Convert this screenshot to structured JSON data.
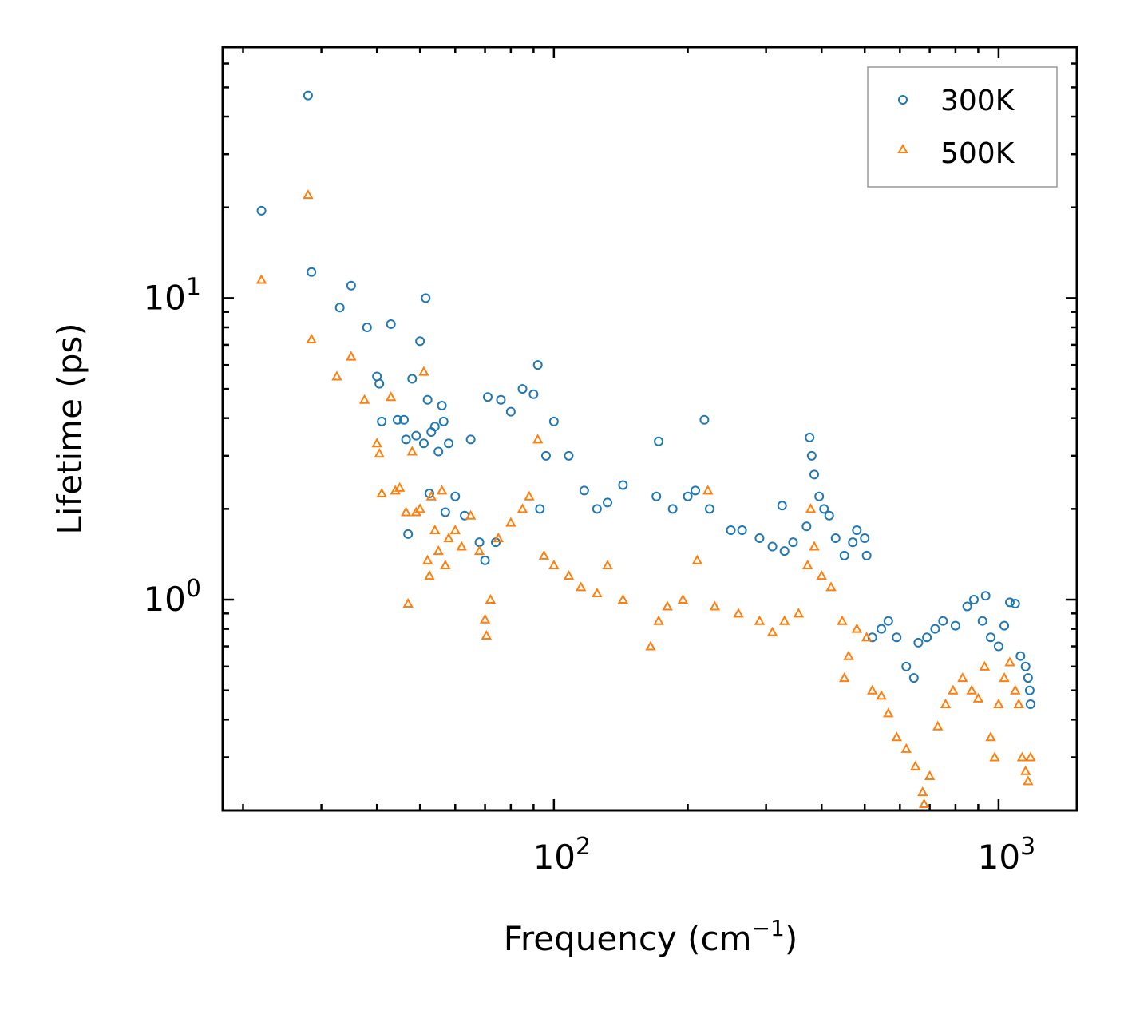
{
  "chart_data": {
    "type": "scatter",
    "xscale": "log",
    "yscale": "log",
    "xlim": [
      18,
      1500
    ],
    "ylim": [
      0.2,
      68
    ],
    "xlabel": "Frequency",
    "xlabel_unit": "(cm",
    "xlabel_sup": "−1",
    "xlabel_close": ")",
    "ylabel": "Lifetime (ps)",
    "xticks": [
      {
        "value": 100,
        "base": "10",
        "exp": "2"
      },
      {
        "value": 1000,
        "base": "10",
        "exp": "3"
      }
    ],
    "yticks": [
      {
        "value": 1,
        "base": "10",
        "exp": "0"
      },
      {
        "value": 10,
        "base": "10",
        "exp": "1"
      }
    ],
    "legend_position": "top-right",
    "series": [
      {
        "name": "300K",
        "marker": "circle",
        "color": "#1f77b4",
        "points": [
          [
            22,
            19.5
          ],
          [
            28,
            47
          ],
          [
            28.5,
            12.2
          ],
          [
            33,
            9.3
          ],
          [
            35,
            11
          ],
          [
            38,
            8
          ],
          [
            40,
            5.5
          ],
          [
            40.5,
            5.2
          ],
          [
            41,
            3.9
          ],
          [
            43,
            8.2
          ],
          [
            44.5,
            3.95
          ],
          [
            46,
            3.95
          ],
          [
            46.5,
            3.4
          ],
          [
            47,
            1.65
          ],
          [
            48,
            5.4
          ],
          [
            49,
            3.5
          ],
          [
            50,
            7.2
          ],
          [
            51,
            3.3
          ],
          [
            51.5,
            10
          ],
          [
            52,
            4.6
          ],
          [
            52.5,
            2.25
          ],
          [
            53,
            3.6
          ],
          [
            54,
            3.75
          ],
          [
            55,
            3.1
          ],
          [
            56,
            4.4
          ],
          [
            56.5,
            3.9
          ],
          [
            57,
            1.95
          ],
          [
            58,
            3.3
          ],
          [
            60,
            2.2
          ],
          [
            63,
            1.9
          ],
          [
            65,
            3.4
          ],
          [
            68,
            1.55
          ],
          [
            70,
            1.35
          ],
          [
            71,
            4.7
          ],
          [
            74,
            1.55
          ],
          [
            76,
            4.6
          ],
          [
            80,
            4.2
          ],
          [
            85,
            5.0
          ],
          [
            90,
            4.8
          ],
          [
            92,
            6.0
          ],
          [
            93,
            2.0
          ],
          [
            96,
            3.0
          ],
          [
            100,
            3.9
          ],
          [
            108,
            3.0
          ],
          [
            117,
            2.3
          ],
          [
            125,
            2.0
          ],
          [
            132,
            2.1
          ],
          [
            143,
            2.4
          ],
          [
            170,
            2.2
          ],
          [
            172,
            3.35
          ],
          [
            185,
            2.0
          ],
          [
            200,
            2.2
          ],
          [
            208,
            2.3
          ],
          [
            218,
            3.95
          ],
          [
            224,
            2.0
          ],
          [
            250,
            1.7
          ],
          [
            265,
            1.7
          ],
          [
            290,
            1.6
          ],
          [
            310,
            1.5
          ],
          [
            326,
            2.05
          ],
          [
            330,
            1.45
          ],
          [
            345,
            1.55
          ],
          [
            370,
            1.75
          ],
          [
            376,
            3.45
          ],
          [
            380,
            3.0
          ],
          [
            385,
            2.6
          ],
          [
            395,
            2.2
          ],
          [
            405,
            2.0
          ],
          [
            416,
            1.9
          ],
          [
            430,
            1.6
          ],
          [
            450,
            1.4
          ],
          [
            470,
            1.55
          ],
          [
            480,
            1.7
          ],
          [
            500,
            1.6
          ],
          [
            505,
            1.4
          ],
          [
            520,
            0.75
          ],
          [
            545,
            0.8
          ],
          [
            565,
            0.85
          ],
          [
            590,
            0.75
          ],
          [
            620,
            0.6
          ],
          [
            645,
            0.55
          ],
          [
            660,
            0.72
          ],
          [
            690,
            0.75
          ],
          [
            720,
            0.8
          ],
          [
            750,
            0.85
          ],
          [
            800,
            0.82
          ],
          [
            850,
            0.95
          ],
          [
            880,
            1.0
          ],
          [
            920,
            0.85
          ],
          [
            935,
            1.03
          ],
          [
            960,
            0.75
          ],
          [
            1000,
            0.7
          ],
          [
            1030,
            0.82
          ],
          [
            1060,
            0.98
          ],
          [
            1090,
            0.97
          ],
          [
            1120,
            0.65
          ],
          [
            1150,
            0.6
          ],
          [
            1165,
            0.55
          ],
          [
            1175,
            0.5
          ],
          [
            1180,
            0.45
          ]
        ]
      },
      {
        "name": "500K",
        "marker": "triangle",
        "color": "#ff7f0e",
        "points": [
          [
            22,
            11.5
          ],
          [
            28,
            22
          ],
          [
            28.5,
            7.3
          ],
          [
            32.5,
            5.5
          ],
          [
            35,
            6.4
          ],
          [
            37.5,
            4.6
          ],
          [
            40,
            3.3
          ],
          [
            40.5,
            3.05
          ],
          [
            41,
            2.25
          ],
          [
            43,
            4.7
          ],
          [
            44,
            2.3
          ],
          [
            45,
            2.35
          ],
          [
            46.5,
            1.95
          ],
          [
            47,
            0.97
          ],
          [
            48,
            3.1
          ],
          [
            49,
            1.95
          ],
          [
            50,
            2.0
          ],
          [
            51,
            5.7
          ],
          [
            52,
            1.35
          ],
          [
            52.5,
            1.2
          ],
          [
            53,
            2.2
          ],
          [
            54,
            1.7
          ],
          [
            55,
            1.45
          ],
          [
            56,
            2.3
          ],
          [
            57,
            1.3
          ],
          [
            58,
            1.6
          ],
          [
            60,
            1.7
          ],
          [
            62,
            1.5
          ],
          [
            65,
            1.9
          ],
          [
            68,
            1.45
          ],
          [
            70,
            0.86
          ],
          [
            70.5,
            0.76
          ],
          [
            72,
            1.0
          ],
          [
            75,
            1.6
          ],
          [
            80,
            1.8
          ],
          [
            85,
            2.0
          ],
          [
            88,
            2.2
          ],
          [
            92,
            3.4
          ],
          [
            95,
            1.4
          ],
          [
            100,
            1.3
          ],
          [
            108,
            1.2
          ],
          [
            115,
            1.1
          ],
          [
            125,
            1.05
          ],
          [
            132,
            1.3
          ],
          [
            143,
            1.0
          ],
          [
            165,
            0.7
          ],
          [
            172,
            0.85
          ],
          [
            180,
            0.95
          ],
          [
            195,
            1.0
          ],
          [
            210,
            1.35
          ],
          [
            222,
            2.3
          ],
          [
            230,
            0.95
          ],
          [
            260,
            0.9
          ],
          [
            290,
            0.85
          ],
          [
            310,
            0.78
          ],
          [
            330,
            0.85
          ],
          [
            355,
            0.9
          ],
          [
            372,
            1.3
          ],
          [
            378,
            2.0
          ],
          [
            385,
            1.5
          ],
          [
            400,
            1.2
          ],
          [
            420,
            1.1
          ],
          [
            445,
            0.85
          ],
          [
            450,
            0.55
          ],
          [
            460,
            0.65
          ],
          [
            480,
            0.8
          ],
          [
            505,
            0.75
          ],
          [
            520,
            0.5
          ],
          [
            545,
            0.48
          ],
          [
            565,
            0.42
          ],
          [
            590,
            0.35
          ],
          [
            620,
            0.32
          ],
          [
            650,
            0.28
          ],
          [
            675,
            0.23
          ],
          [
            680,
            0.21
          ],
          [
            700,
            0.26
          ],
          [
            730,
            0.38
          ],
          [
            760,
            0.45
          ],
          [
            790,
            0.5
          ],
          [
            830,
            0.55
          ],
          [
            870,
            0.5
          ],
          [
            900,
            0.47
          ],
          [
            930,
            0.6
          ],
          [
            960,
            0.35
          ],
          [
            980,
            0.3
          ],
          [
            1000,
            0.45
          ],
          [
            1030,
            0.55
          ],
          [
            1060,
            0.62
          ],
          [
            1090,
            0.5
          ],
          [
            1110,
            0.45
          ],
          [
            1130,
            0.3
          ],
          [
            1150,
            0.27
          ],
          [
            1165,
            0.25
          ],
          [
            1180,
            0.3
          ]
        ]
      }
    ]
  }
}
